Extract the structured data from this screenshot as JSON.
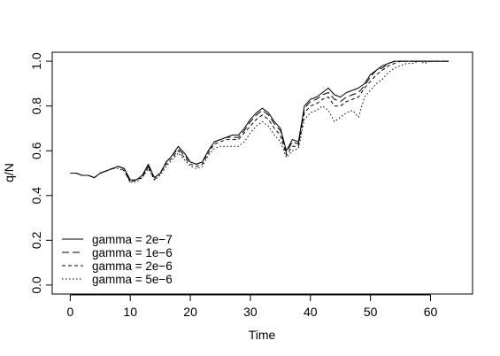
{
  "chart_data": {
    "type": "line",
    "title": "",
    "xlabel": "Time",
    "ylabel": "q/N",
    "xlim": [
      -3,
      67
    ],
    "ylim": [
      -0.04,
      1.04
    ],
    "xticks": [
      0,
      10,
      20,
      30,
      40,
      50,
      60
    ],
    "yticks": [
      0.0,
      0.2,
      0.4,
      0.6,
      0.8,
      1.0
    ],
    "xtick_labels": [
      "0",
      "10",
      "20",
      "30",
      "40",
      "50",
      "60"
    ],
    "ytick_labels": [
      "0.0",
      "0.2",
      "0.4",
      "0.6",
      "0.8",
      "1.0"
    ],
    "grid": false,
    "legend_position": "bottom-left",
    "series": [
      {
        "name": "gamma = 2e−7",
        "dash": "",
        "x": [
          0,
          1,
          2,
          3,
          4,
          5,
          6,
          7,
          8,
          9,
          10,
          11,
          12,
          13,
          14,
          15,
          16,
          17,
          18,
          19,
          20,
          21,
          22,
          23,
          24,
          25,
          26,
          27,
          28,
          29,
          30,
          31,
          32,
          33,
          34,
          35,
          36,
          37,
          38,
          39,
          40,
          41,
          42,
          43,
          44,
          45,
          46,
          47,
          48,
          49,
          50,
          51,
          52,
          53,
          54,
          55,
          56,
          57,
          58,
          59,
          60,
          61,
          62,
          63
        ],
        "values": [
          0.5,
          0.5,
          0.49,
          0.49,
          0.48,
          0.5,
          0.51,
          0.52,
          0.53,
          0.52,
          0.47,
          0.47,
          0.49,
          0.54,
          0.48,
          0.5,
          0.55,
          0.58,
          0.62,
          0.59,
          0.55,
          0.54,
          0.55,
          0.6,
          0.64,
          0.65,
          0.66,
          0.67,
          0.67,
          0.7,
          0.74,
          0.77,
          0.79,
          0.77,
          0.73,
          0.7,
          0.6,
          0.65,
          0.64,
          0.8,
          0.83,
          0.84,
          0.86,
          0.88,
          0.85,
          0.84,
          0.86,
          0.87,
          0.88,
          0.9,
          0.94,
          0.96,
          0.98,
          0.99,
          1.0,
          1.0,
          1.0,
          1.0,
          1.0,
          1.0,
          1.0,
          1.0,
          1.0,
          1.0
        ]
      },
      {
        "name": "gamma = 1e−6",
        "dash": "8 4",
        "x": [
          0,
          1,
          2,
          3,
          4,
          5,
          6,
          7,
          8,
          9,
          10,
          11,
          12,
          13,
          14,
          15,
          16,
          17,
          18,
          19,
          20,
          21,
          22,
          23,
          24,
          25,
          26,
          27,
          28,
          29,
          30,
          31,
          32,
          33,
          34,
          35,
          36,
          37,
          38,
          39,
          40,
          41,
          42,
          43,
          44,
          45,
          46,
          47,
          48,
          49,
          50,
          51,
          52,
          53,
          54,
          55,
          56,
          57,
          58,
          59,
          60,
          61,
          62,
          63
        ],
        "values": [
          0.5,
          0.5,
          0.49,
          0.49,
          0.48,
          0.5,
          0.51,
          0.52,
          0.53,
          0.52,
          0.46,
          0.47,
          0.49,
          0.53,
          0.48,
          0.5,
          0.55,
          0.58,
          0.61,
          0.58,
          0.55,
          0.54,
          0.55,
          0.6,
          0.64,
          0.65,
          0.66,
          0.66,
          0.66,
          0.69,
          0.73,
          0.76,
          0.78,
          0.76,
          0.72,
          0.69,
          0.59,
          0.64,
          0.63,
          0.79,
          0.82,
          0.83,
          0.85,
          0.86,
          0.83,
          0.82,
          0.84,
          0.85,
          0.86,
          0.89,
          0.93,
          0.96,
          0.97,
          0.99,
          1.0,
          1.0,
          1.0,
          1.0,
          1.0,
          1.0,
          1.0,
          1.0,
          1.0,
          1.0
        ]
      },
      {
        "name": "gamma = 2e−6",
        "dash": "4 3",
        "x": [
          0,
          1,
          2,
          3,
          4,
          5,
          6,
          7,
          8,
          9,
          10,
          11,
          12,
          13,
          14,
          15,
          16,
          17,
          18,
          19,
          20,
          21,
          22,
          23,
          24,
          25,
          26,
          27,
          28,
          29,
          30,
          31,
          32,
          33,
          34,
          35,
          36,
          37,
          38,
          39,
          40,
          41,
          42,
          43,
          44,
          45,
          46,
          47,
          48,
          49,
          50,
          51,
          52,
          53,
          54,
          55,
          56,
          57,
          58,
          59,
          60,
          61,
          62,
          63
        ],
        "values": [
          0.5,
          0.5,
          0.49,
          0.49,
          0.48,
          0.5,
          0.51,
          0.52,
          0.53,
          0.51,
          0.46,
          0.47,
          0.48,
          0.53,
          0.47,
          0.5,
          0.54,
          0.57,
          0.6,
          0.57,
          0.54,
          0.53,
          0.54,
          0.59,
          0.63,
          0.64,
          0.65,
          0.65,
          0.65,
          0.68,
          0.71,
          0.74,
          0.76,
          0.74,
          0.7,
          0.67,
          0.58,
          0.62,
          0.62,
          0.77,
          0.8,
          0.81,
          0.83,
          0.84,
          0.8,
          0.8,
          0.82,
          0.83,
          0.84,
          0.88,
          0.91,
          0.94,
          0.96,
          0.98,
          0.99,
          1.0,
          1.0,
          1.0,
          1.0,
          1.0,
          1.0,
          1.0,
          1.0,
          1.0
        ]
      },
      {
        "name": "gamma = 5e−6",
        "dash": "1.5 2.5",
        "x": [
          0,
          1,
          2,
          3,
          4,
          5,
          6,
          7,
          8,
          9,
          10,
          11,
          12,
          13,
          14,
          15,
          16,
          17,
          18,
          19,
          20,
          21,
          22,
          23,
          24,
          25,
          26,
          27,
          28,
          29,
          30,
          31,
          32,
          33,
          34,
          35,
          36,
          37,
          38,
          39,
          40,
          41,
          42,
          43,
          44,
          45,
          46,
          47,
          48,
          49,
          50,
          51,
          52,
          53,
          54,
          55,
          56,
          57,
          58,
          59,
          60,
          61,
          62,
          63
        ],
        "values": [
          0.5,
          0.5,
          0.49,
          0.49,
          0.48,
          0.5,
          0.51,
          0.52,
          0.52,
          0.51,
          0.46,
          0.46,
          0.48,
          0.52,
          0.47,
          0.49,
          0.53,
          0.56,
          0.59,
          0.56,
          0.53,
          0.52,
          0.53,
          0.58,
          0.61,
          0.62,
          0.62,
          0.62,
          0.62,
          0.64,
          0.68,
          0.71,
          0.73,
          0.71,
          0.67,
          0.64,
          0.57,
          0.6,
          0.61,
          0.74,
          0.77,
          0.78,
          0.8,
          0.78,
          0.73,
          0.75,
          0.77,
          0.78,
          0.75,
          0.84,
          0.87,
          0.9,
          0.92,
          0.95,
          0.97,
          0.98,
          0.99,
          0.99,
          1.0,
          0.99,
          1.0,
          1.0,
          1.0,
          1.0
        ]
      }
    ]
  }
}
